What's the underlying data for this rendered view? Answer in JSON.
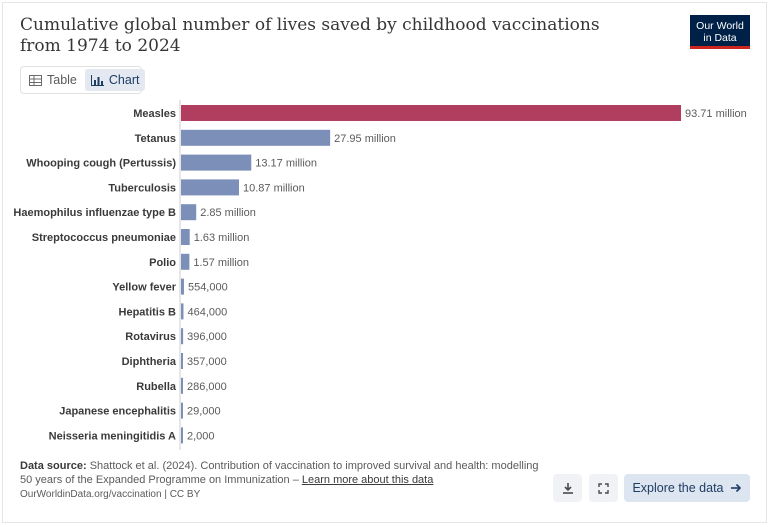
{
  "title": "Cumulative global number of lives saved by childhood vaccinations from 1974 to 2024",
  "logo": {
    "line1": "Our World",
    "line2": "in Data"
  },
  "tabs": [
    {
      "label": "Table",
      "icon": "table-icon",
      "active": false
    },
    {
      "label": "Chart",
      "icon": "chart-icon",
      "active": true
    }
  ],
  "colors": {
    "highlight": "#b13e5f",
    "bar": "#7c8fb8",
    "axis": "#cccccc"
  },
  "chart_data": {
    "type": "bar",
    "orientation": "horizontal",
    "categories": [
      "Measles",
      "Tetanus",
      "Whooping cough (Pertussis)",
      "Tuberculosis",
      "Haemophilus influenzae type B",
      "Streptococcus pneumoniae",
      "Polio",
      "Yellow fever",
      "Hepatitis B",
      "Rotavirus",
      "Diphtheria",
      "Rubella",
      "Japanese encephalitis",
      "Neisseria meningitidis A"
    ],
    "values": [
      93710000,
      27950000,
      13170000,
      10870000,
      2850000,
      1630000,
      1570000,
      554000,
      464000,
      396000,
      357000,
      286000,
      29000,
      2000
    ],
    "value_labels": [
      "93.71 million",
      "27.95 million",
      "13.17 million",
      "10.87 million",
      "2.85 million",
      "1.63 million",
      "1.57 million",
      "554,000",
      "464,000",
      "396,000",
      "357,000",
      "286,000",
      "29,000",
      "2,000"
    ],
    "highlighted_category": "Measles"
  },
  "footer": {
    "source_label": "Data source:",
    "source_text": "Shattock et al. (2024). Contribution of vaccination to improved survival and health: modelling 50 years of the Expanded Programme on Immunization – ",
    "learn_more": "Learn more about this data",
    "url_line": "OurWorldinData.org/vaccination | CC BY"
  },
  "buttons": {
    "download_icon": "download-icon",
    "fullscreen_icon": "fullscreen-icon",
    "explore_label": "Explore the data",
    "explore_icon": "arrow-right-icon"
  }
}
